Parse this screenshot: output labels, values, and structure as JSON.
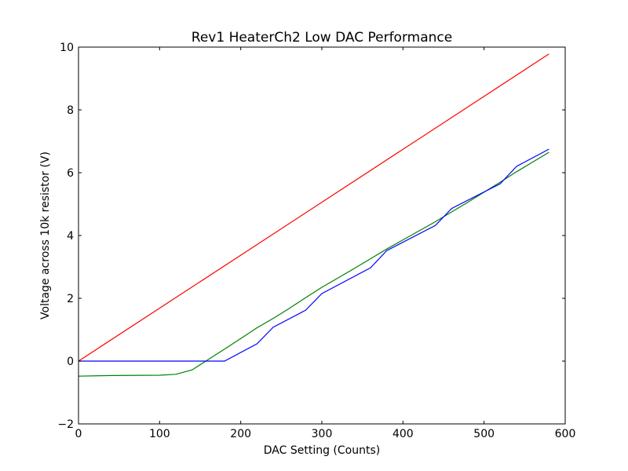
{
  "chart_data": {
    "type": "line",
    "title": "Rev1 HeaterCh2 Low DAC Performance",
    "xlabel": "DAC Setting (Counts)",
    "ylabel": "Voltage across 10k resistor (V)",
    "xlim": [
      0,
      600
    ],
    "ylim": [
      -2,
      10
    ],
    "xticks": [
      0,
      100,
      200,
      300,
      400,
      500,
      600
    ],
    "yticks": [
      -2,
      0,
      2,
      4,
      6,
      8,
      10
    ],
    "xtick_labels": [
      "0",
      "100",
      "200",
      "300",
      "400",
      "500",
      "600"
    ],
    "ytick_labels": [
      "−2",
      "0",
      "2",
      "4",
      "6",
      "8",
      "10"
    ],
    "grid": false,
    "legend": "none",
    "series": [
      {
        "color": "#ff0000",
        "x": [
          0,
          580
        ],
        "y": [
          0,
          9.78
        ]
      },
      {
        "color": "#008000",
        "x": [
          0,
          40,
          100,
          120,
          140,
          160,
          180,
          200,
          220,
          240,
          260,
          280,
          300,
          320,
          340,
          360,
          380,
          400,
          420,
          440,
          460,
          480,
          500,
          520,
          540,
          560,
          580
        ],
        "y": [
          -0.48,
          -0.46,
          -0.45,
          -0.42,
          -0.28,
          0.05,
          0.38,
          0.72,
          1.06,
          1.36,
          1.68,
          2.02,
          2.35,
          2.65,
          2.95,
          3.26,
          3.57,
          3.86,
          4.15,
          4.44,
          4.75,
          5.06,
          5.38,
          5.7,
          6.03,
          6.34,
          6.65
        ]
      },
      {
        "color": "#0000ff",
        "x": [
          0,
          180,
          220,
          240,
          280,
          300,
          360,
          380,
          440,
          460,
          520,
          540,
          580
        ],
        "y": [
          0,
          0,
          0.55,
          1.08,
          1.62,
          2.15,
          2.97,
          3.52,
          4.32,
          4.86,
          5.65,
          6.2,
          6.75
        ]
      }
    ]
  }
}
